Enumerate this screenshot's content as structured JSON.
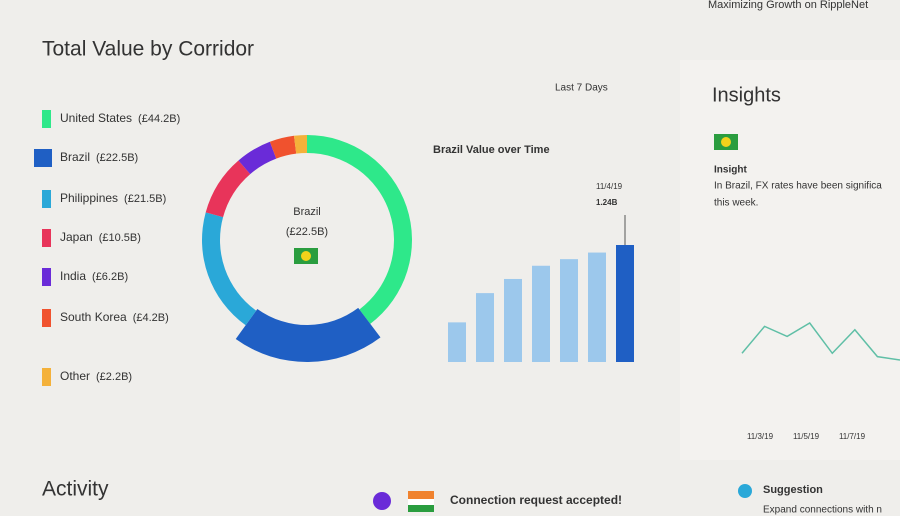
{
  "header": {
    "title": "Maximizing Growth on RippleNet"
  },
  "corridor": {
    "title": "Total Value by Corridor",
    "period": "Last 7 Days",
    "categories": [
      "United States",
      "Brazil",
      "Philippines",
      "Japan",
      "India",
      "South Korea",
      "Other"
    ],
    "values": [
      44.2,
      22.5,
      21.5,
      10.5,
      6.2,
      4.2,
      2.2
    ],
    "value_labels": [
      "(£44.2B)",
      "(£22.5B)",
      "(£21.5B)",
      "(£10.5B)",
      "(£6.2B)",
      "(£4.2B)",
      "(£2.2B)"
    ],
    "colors": [
      "#2ee88a",
      "#1f5fc4",
      "#2aa8d8",
      "#e8345a",
      "#6a2bd8",
      "#f0522e",
      "#f4b13a"
    ],
    "selected": 1,
    "center_title": "Brazil",
    "center_value": "(£22.5B)"
  },
  "brazil_chart": {
    "title": "Brazil Value over Time",
    "values": [
      0.42,
      0.73,
      0.88,
      1.02,
      1.09,
      1.16,
      1.24
    ],
    "highlight_date": "11/4/19",
    "highlight_label": "1.24B",
    "color": "#9cc8ec",
    "highlight_color": "#1f5fc4"
  },
  "insights": {
    "title": "Insights",
    "heading": "Insight",
    "text_line1": "In Brazil, FX rates have been significa",
    "text_line2": "this week.",
    "line_values": [
      2,
      10,
      7,
      11,
      2,
      9,
      1,
      0
    ],
    "x_labels": [
      "11/3/19",
      "11/5/19",
      "11/7/19"
    ],
    "color": "#5fbfa6"
  },
  "activity": {
    "title": "Activity",
    "message": "Connection request accepted!",
    "suggestion_title": "Suggestion",
    "suggestion_text": "Expand connections with n"
  }
}
